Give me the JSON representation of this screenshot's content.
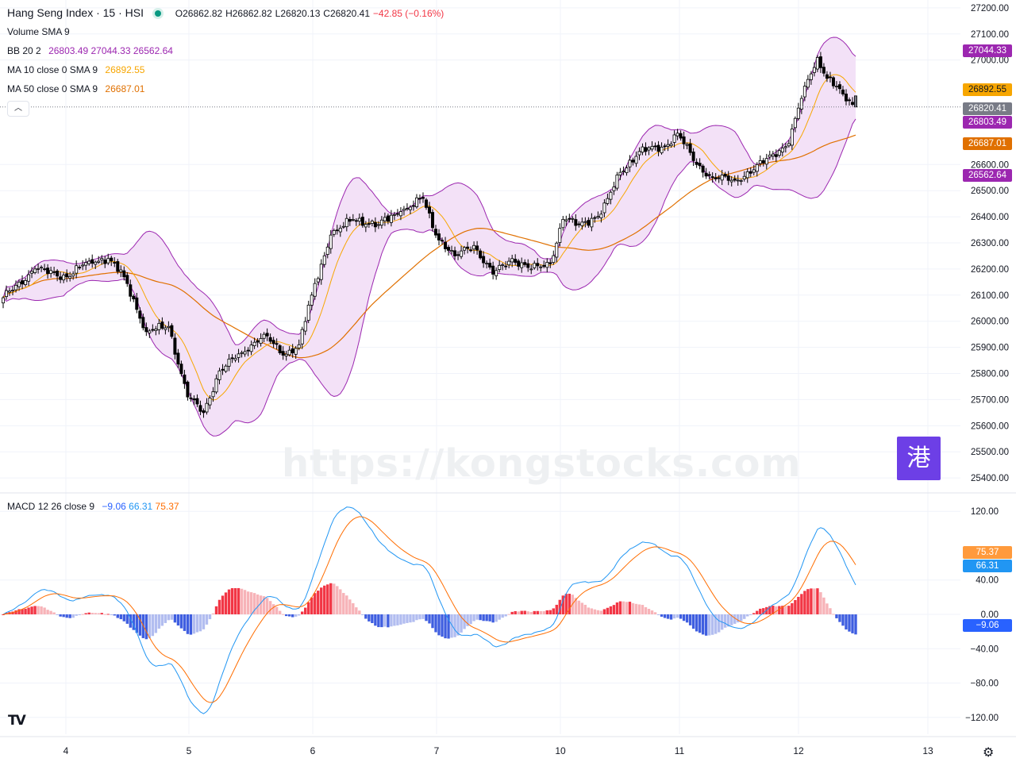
{
  "header": {
    "symbol": "Hang Seng Index · 15 · HSI",
    "open": "O26862.82",
    "high": "H26862.82",
    "low": "L26820.13",
    "close": "C26820.41",
    "change": "−42.85 (−0.16%)",
    "change_color": "#f23645"
  },
  "watermark": {
    "text": "https://kongstocks.com",
    "logo_glyph": "港"
  },
  "legend": {
    "volume": {
      "label": "Volume",
      "params": "SMA 9"
    },
    "bb": {
      "label": "BB",
      "params": "20 2",
      "basis": "26803.49",
      "upper": "27044.33",
      "lower": "26562.64",
      "color": "#9c27b0"
    },
    "ma10": {
      "label": "MA",
      "params": "10 close 0 SMA 9",
      "value": "26892.55",
      "color": "#f7a600"
    },
    "ma50": {
      "label": "MA",
      "params": "50 close 0 SMA 9",
      "value": "26687.01",
      "color": "#e07000"
    },
    "macd": {
      "label": "MACD",
      "params": "12 26 close 9",
      "hist": "−9.06",
      "macd": "66.31",
      "signal": "75.37",
      "hist_color": "#2962ff",
      "macd_color": "#2196f3",
      "signal_color": "#ff6d00"
    }
  },
  "badges": {
    "bb_upper": "27044.33",
    "ma10": "26892.55",
    "last": "26820.41",
    "bb_basis": "26803.49",
    "ma50": "26687.01",
    "bb_lower": "26562.64",
    "signal": "75.37",
    "macd": "66.31",
    "hist": "−9.06"
  },
  "colors": {
    "up": "#ffffff",
    "down": "#000000",
    "bb_fill": "#f3e1f7",
    "bb_line": "#9c27b0",
    "hist_pos": "#f23645",
    "hist_pos_light": "#f7b3b8",
    "hist_neg": "#3f5ee0",
    "hist_neg_light": "#b2bdf0"
  },
  "chart_data": [
    {
      "type": "candlestick",
      "title": "Hang Seng Index · 15 · HSI",
      "ylim": [
        25370,
        27230
      ],
      "y_ticks": [
        25400,
        25500,
        25600,
        25700,
        25800,
        25900,
        26000,
        26100,
        26200,
        26300,
        26400,
        26500,
        26600,
        27000,
        27100,
        27200
      ],
      "x_ticks": [
        "4",
        "5",
        "6",
        "7",
        "10",
        "11",
        "12",
        "13"
      ],
      "anchors": [
        {
          "t": 0,
          "c": 26090
        },
        {
          "t": 10,
          "c": 26200
        },
        {
          "t": 20,
          "c": 26170
        },
        {
          "t": 27,
          "c": 26230
        },
        {
          "t": 33,
          "c": 26240
        },
        {
          "t": 38,
          "c": 26170
        },
        {
          "t": 45,
          "c": 25960
        },
        {
          "t": 52,
          "c": 25980
        },
        {
          "t": 58,
          "c": 25710
        },
        {
          "t": 63,
          "c": 25650
        },
        {
          "t": 68,
          "c": 25810
        },
        {
          "t": 75,
          "c": 25880
        },
        {
          "t": 82,
          "c": 25950
        },
        {
          "t": 88,
          "c": 25870
        },
        {
          "t": 93,
          "c": 25910
        },
        {
          "t": 97,
          "c": 26100
        },
        {
          "t": 103,
          "c": 26330
        },
        {
          "t": 110,
          "c": 26390
        },
        {
          "t": 118,
          "c": 26370
        },
        {
          "t": 125,
          "c": 26420
        },
        {
          "t": 132,
          "c": 26470
        },
        {
          "t": 136,
          "c": 26330
        },
        {
          "t": 142,
          "c": 26250
        },
        {
          "t": 148,
          "c": 26290
        },
        {
          "t": 154,
          "c": 26180
        },
        {
          "t": 160,
          "c": 26240
        },
        {
          "t": 166,
          "c": 26200
        },
        {
          "t": 172,
          "c": 26220
        },
        {
          "t": 176,
          "c": 26390
        },
        {
          "t": 181,
          "c": 26370
        },
        {
          "t": 188,
          "c": 26410
        },
        {
          "t": 194,
          "c": 26570
        },
        {
          "t": 200,
          "c": 26650
        },
        {
          "t": 208,
          "c": 26670
        },
        {
          "t": 212,
          "c": 26720
        },
        {
          "t": 218,
          "c": 26600
        },
        {
          "t": 223,
          "c": 26550
        },
        {
          "t": 230,
          "c": 26540
        },
        {
          "t": 236,
          "c": 26580
        },
        {
          "t": 242,
          "c": 26640
        },
        {
          "t": 247,
          "c": 26680
        },
        {
          "t": 252,
          "c": 26900
        },
        {
          "t": 256,
          "c": 27010
        },
        {
          "t": 259,
          "c": 26930
        },
        {
          "t": 264,
          "c": 26870
        },
        {
          "t": 268,
          "c": 26820
        }
      ],
      "last": {
        "o": 26862.82,
        "h": 26862.82,
        "l": 26820.13,
        "c": 26820.41
      }
    },
    {
      "type": "line",
      "title": "MACD 12 26 close 9",
      "ylim": [
        -135,
        135
      ],
      "y_ticks": [
        120,
        40,
        0,
        -40,
        -80,
        -120
      ],
      "series": [
        {
          "name": "MACD",
          "value": 66.31
        },
        {
          "name": "Signal",
          "value": 75.37
        },
        {
          "name": "Histogram",
          "value": -9.06
        }
      ]
    }
  ]
}
